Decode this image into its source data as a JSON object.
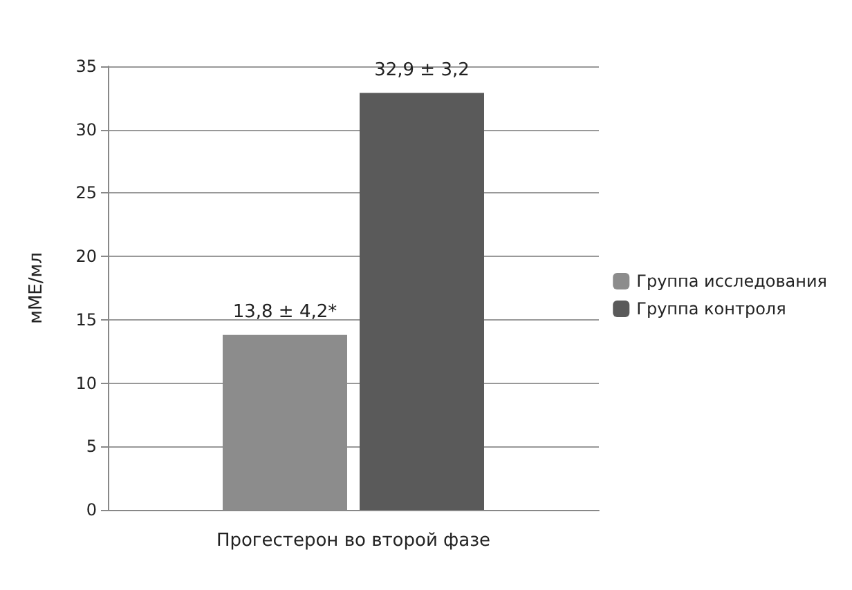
{
  "chart_data": {
    "type": "bar",
    "ylabel": "мМЕ/мл",
    "categories": [
      "Прогестерон во второй фазе"
    ],
    "series": [
      {
        "name": "Группа исследования",
        "color": "#8c8c8c",
        "values": [
          13.8
        ],
        "value_labels": [
          "13,8 ± 4,2*"
        ]
      },
      {
        "name": "Группа контроля",
        "color": "#5a5a5a",
        "values": [
          32.9
        ],
        "value_labels": [
          "32,9 ± 3,2"
        ]
      }
    ],
    "ylim": [
      0,
      35
    ],
    "yticks": [
      0,
      5,
      10,
      15,
      20,
      25,
      30,
      35
    ],
    "grid": "y",
    "legend": "right"
  }
}
